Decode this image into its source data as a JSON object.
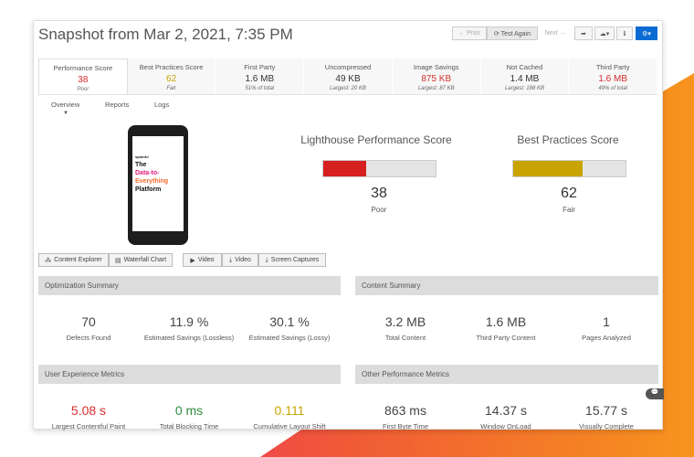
{
  "title": "Snapshot from Mar 2, 2021, 7:35 PM",
  "toolbar": {
    "prior": "← Prior",
    "test_again": "⟳ Test Again",
    "next": "Next →",
    "share_icon": "share-icon",
    "cloud_icon": "cloud-upload-icon",
    "info_icon": "info-icon",
    "gear_icon": "gear-icon",
    "accent": "#0b6bd3"
  },
  "tabs": [
    {
      "label": "Performance Score",
      "value": "38",
      "sub": "Poor",
      "color": "#d62d2d"
    },
    {
      "label": "Best Practices Score",
      "value": "62",
      "sub": "Fair",
      "color": "#c9a400"
    },
    {
      "label": "First Party",
      "value": "1.6 MB",
      "sub": "51% of total",
      "color": "#333"
    },
    {
      "label": "Uncompressed",
      "value": "49 KB",
      "sub": "Largest: 20 KB",
      "color": "#333"
    },
    {
      "label": "Image Savings",
      "value": "875 KB",
      "sub": "Largest: 87 KB",
      "color": "#d62d2d"
    },
    {
      "label": "Not Cached",
      "value": "1.4 MB",
      "sub": "Largest: 188 KB",
      "color": "#333"
    },
    {
      "label": "Third Party",
      "value": "1.6 MB",
      "sub": "49% of total",
      "color": "#d62d2d"
    }
  ],
  "subtabs": [
    "Overview",
    "Reports",
    "Logs"
  ],
  "phone": {
    "brand": "splunk>",
    "text1": "The",
    "text2": "Data-to-",
    "text3": "Everything",
    "text4": "Platform"
  },
  "scores": [
    {
      "title": "Lighthouse Performance Score",
      "value": "38",
      "rating": "Poor",
      "percent": 38,
      "color": "#d62020"
    },
    {
      "title": "Best Practices Score",
      "value": "62",
      "rating": "Fair",
      "percent": 62,
      "color": "#c9a400"
    }
  ],
  "buttons": [
    "Content Explorer",
    "Waterfall Chart",
    "Video",
    "Video",
    "Screen Captures"
  ],
  "optimization": {
    "header": "Optimization Summary",
    "metrics": [
      {
        "v": "70",
        "l": "Defects Found"
      },
      {
        "v": "11.9 %",
        "l": "Estimated Savings (Lossless)"
      },
      {
        "v": "30.1 %",
        "l": "Estimated Savings (Lossy)"
      }
    ]
  },
  "content": {
    "header": "Content Summary",
    "metrics": [
      {
        "v": "3.2 MB",
        "l": "Total Content"
      },
      {
        "v": "1.6 MB",
        "l": "Third Party Content"
      },
      {
        "v": "1",
        "l": "Pages Analyzed"
      }
    ]
  },
  "ux": {
    "header": "User Experience Metrics",
    "metrics": [
      {
        "v": "5.08 s",
        "l": "Largest Contentful Paint",
        "c": "#d62d2d"
      },
      {
        "v": "0 ms",
        "l": "Total Blocking Time",
        "c": "#2e8b3e"
      },
      {
        "v": "0.111",
        "l": "Cumulative Layout Shift",
        "c": "#c9a400"
      }
    ]
  },
  "other": {
    "header": "Other Performance Metrics",
    "metrics": [
      {
        "v": "863 ms",
        "l": "First Byte Time"
      },
      {
        "v": "14.37 s",
        "l": "Window OnLoad"
      },
      {
        "v": "15.77 s",
        "l": "Visually Complete"
      }
    ]
  }
}
